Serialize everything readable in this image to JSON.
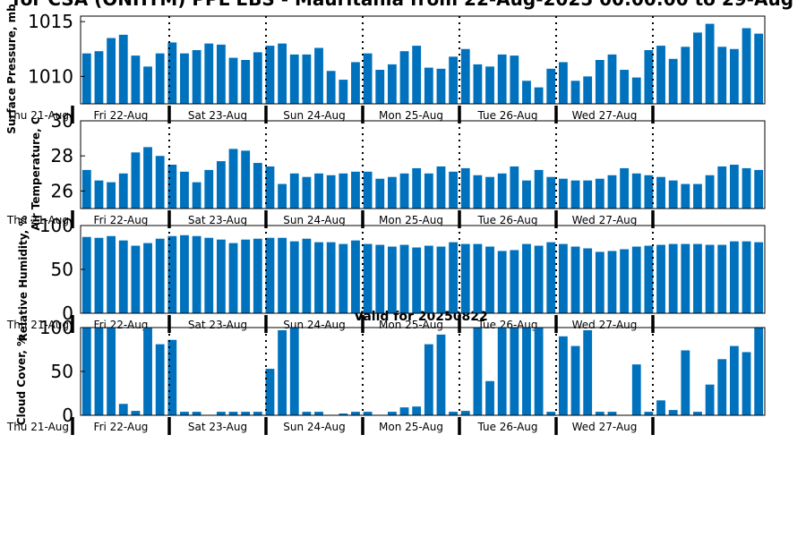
{
  "title": "for CSA (ONHTM) PPL EBS  - Mauritania from 22-Aug-2025 00:00:00 to 29-Aug",
  "valid_label": "Valid for 20250822",
  "colors": {
    "bar": "#0072bd",
    "axis": "#000000",
    "background": "#ffffff"
  },
  "day_labels": [
    "Thu 21-Aug",
    "Fri 22-Aug",
    "Sat 23-Aug",
    "Sun 24-Aug",
    "Mon 25-Aug",
    "Tue 26-Aug",
    "Wed 27-Aug"
  ],
  "chart_data": [
    {
      "type": "bar",
      "ylabel": "Surface Pressure, mb",
      "ylim": [
        1007.5,
        1015.5
      ],
      "yticks": [
        1010,
        1015
      ],
      "values": [
        1012.1,
        1012.3,
        1013.5,
        1013.8,
        1011.9,
        1010.9,
        1012.1,
        1013.1,
        1012.1,
        1012.4,
        1013.0,
        1012.9,
        1011.7,
        1011.5,
        1012.2,
        1012.8,
        1013.0,
        1012.0,
        1012.0,
        1012.6,
        1010.5,
        1009.7,
        1011.3,
        1012.1,
        1010.6,
        1011.1,
        1012.3,
        1012.8,
        1010.8,
        1010.7,
        1011.8,
        1012.5,
        1011.1,
        1010.9,
        1012.0,
        1011.9,
        1009.6,
        1009.0,
        1010.7,
        1011.3,
        1009.6,
        1010.0,
        1011.5,
        1012.0,
        1010.6,
        1009.9,
        1012.4,
        1012.8,
        1011.6,
        1012.7,
        1014.0,
        1014.8,
        1012.7,
        1012.5,
        1014.4,
        1013.9
      ]
    },
    {
      "type": "bar",
      "ylabel": "Air Temperature, C",
      "ylim": [
        25,
        30
      ],
      "yticks": [
        26,
        28,
        30
      ],
      "values": [
        27.2,
        26.6,
        26.5,
        27.0,
        28.2,
        28.5,
        28.0,
        27.5,
        27.1,
        26.5,
        27.2,
        27.7,
        28.4,
        28.3,
        27.6,
        27.4,
        26.4,
        27.0,
        26.8,
        27.0,
        26.9,
        27.0,
        27.1,
        27.1,
        26.7,
        26.8,
        27.0,
        27.3,
        27.0,
        27.4,
        27.1,
        27.3,
        26.9,
        26.8,
        27.0,
        27.4,
        26.6,
        27.2,
        26.8,
        26.7,
        26.6,
        26.6,
        26.7,
        26.9,
        27.3,
        27.0,
        26.9,
        26.8,
        26.6,
        26.4,
        26.4,
        26.9,
        27.4,
        27.5,
        27.3,
        27.2
      ]
    },
    {
      "type": "bar",
      "ylabel": "Relative Humidity, %",
      "ylim": [
        0,
        100
      ],
      "yticks": [
        0,
        50,
        100
      ],
      "values": [
        87,
        86,
        88,
        83,
        77,
        80,
        85,
        88,
        89,
        88,
        86,
        84,
        80,
        84,
        85,
        86,
        86,
        82,
        85,
        81,
        81,
        79,
        83,
        79,
        78,
        76,
        78,
        75,
        77,
        76,
        81,
        79,
        79,
        76,
        71,
        72,
        79,
        77,
        81,
        79,
        76,
        74,
        70,
        71,
        73,
        76,
        77,
        78,
        79,
        79,
        79,
        78,
        78,
        82,
        82,
        81
      ]
    },
    {
      "type": "bar",
      "ylabel": "Cloud Cover, %",
      "ylim": [
        0,
        100
      ],
      "yticks": [
        0,
        50,
        100
      ],
      "values": [
        100,
        100,
        100,
        13,
        5,
        100,
        81,
        86,
        4,
        4,
        0,
        4,
        4,
        4,
        4,
        53,
        97,
        100,
        4,
        4,
        0,
        2,
        4,
        4,
        0,
        4,
        9,
        10,
        81,
        92,
        4,
        5,
        100,
        39,
        100,
        100,
        100,
        100,
        4,
        90,
        79,
        97,
        4,
        4,
        0,
        58,
        4,
        17,
        6,
        74,
        4,
        35,
        64,
        79,
        72,
        100
      ]
    }
  ]
}
